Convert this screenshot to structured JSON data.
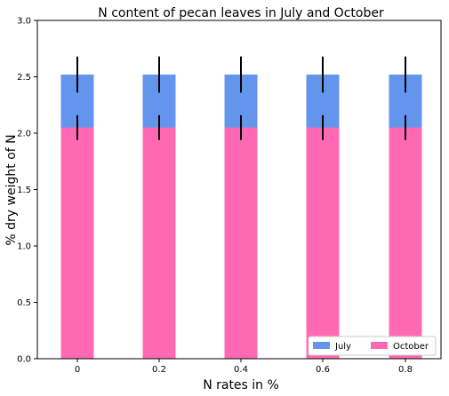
{
  "chart_data": {
    "type": "bar",
    "title": "N content of pecan leaves in July and October",
    "xlabel": "N rates in %",
    "ylabel": "% dry weight of N",
    "categories": [
      "0",
      "0.2",
      "0.4",
      "0.6",
      "0.8"
    ],
    "ylim": [
      0,
      3.0
    ],
    "yticks": [
      "0.0",
      "0.5",
      "1.0",
      "1.5",
      "2.0",
      "2.5",
      "3.0"
    ],
    "series": [
      {
        "name": "July",
        "values": [
          2.52,
          2.52,
          2.52,
          2.52,
          2.52
        ],
        "error": [
          0.16,
          0.16,
          0.16,
          0.16,
          0.16
        ],
        "color": "#6495ED"
      },
      {
        "name": "October",
        "values": [
          2.05,
          2.05,
          2.05,
          2.05,
          2.05
        ],
        "error": [
          0.11,
          0.11,
          0.11,
          0.11,
          0.11
        ],
        "color": "#FF69B4"
      }
    ],
    "overlay": true,
    "grid": false,
    "legend_position": "lower-right"
  }
}
